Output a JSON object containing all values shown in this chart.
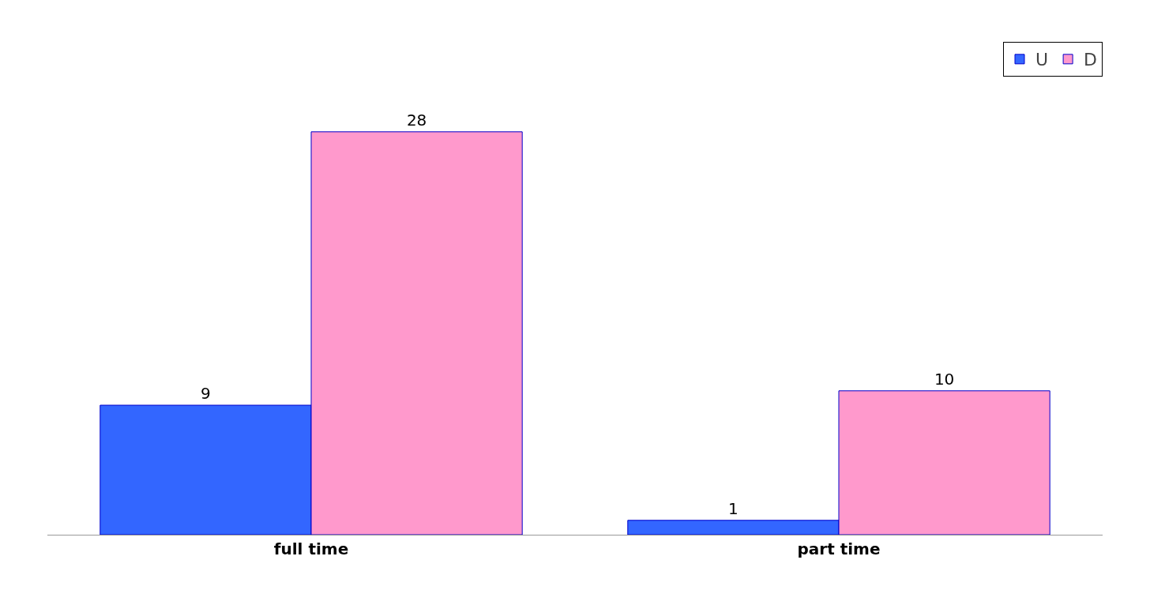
{
  "chart_data": {
    "type": "bar",
    "categories": [
      "full time",
      "part time"
    ],
    "series": [
      {
        "name": "U",
        "color": "#3366ff",
        "values": [
          9,
          1
        ]
      },
      {
        "name": "D",
        "color": "#ff99cc",
        "values": [
          28,
          10
        ]
      }
    ],
    "data_labels": true,
    "grid": false,
    "legend": "top right"
  }
}
